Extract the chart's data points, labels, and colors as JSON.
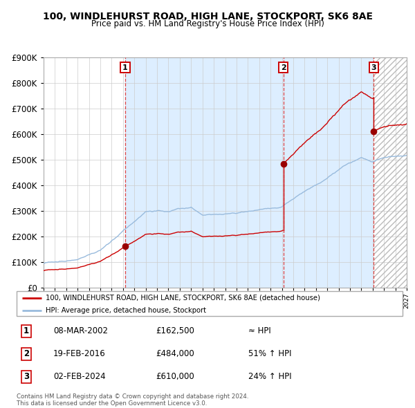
{
  "title": "100, WINDLEHURST ROAD, HIGH LANE, STOCKPORT, SK6 8AE",
  "subtitle": "Price paid vs. HM Land Registry's House Price Index (HPI)",
  "legend_property": "100, WINDLEHURST ROAD, HIGH LANE, STOCKPORT, SK6 8AE (detached house)",
  "legend_hpi": "HPI: Average price, detached house, Stockport",
  "sale1_date": "08-MAR-2002",
  "sale1_price": 162500,
  "sale1_hpi": "≈ HPI",
  "sale2_date": "19-FEB-2016",
  "sale2_price": 484000,
  "sale2_hpi": "51% ↑ HPI",
  "sale3_date": "02-FEB-2024",
  "sale3_price": 610000,
  "sale3_hpi": "24% ↑ HPI",
  "footnote": "Contains HM Land Registry data © Crown copyright and database right 2024.\nThis data is licensed under the Open Government Licence v3.0.",
  "property_line_color": "#cc0000",
  "hpi_line_color": "#99bbdd",
  "sale_dot_color": "#990000",
  "vline_color": "#dd4444",
  "bg_color_main": "#ddeeff",
  "grid_color": "#cccccc",
  "box_color": "#cc0000",
  "ylim": [
    0,
    900000
  ],
  "yticks": [
    0,
    100000,
    200000,
    300000,
    400000,
    500000,
    600000,
    700000,
    800000,
    900000
  ],
  "xlim_start": 1995.0,
  "xlim_end": 2027.0,
  "sale1_x": 2002.19,
  "sale2_x": 2016.13,
  "sale3_x": 2024.09
}
